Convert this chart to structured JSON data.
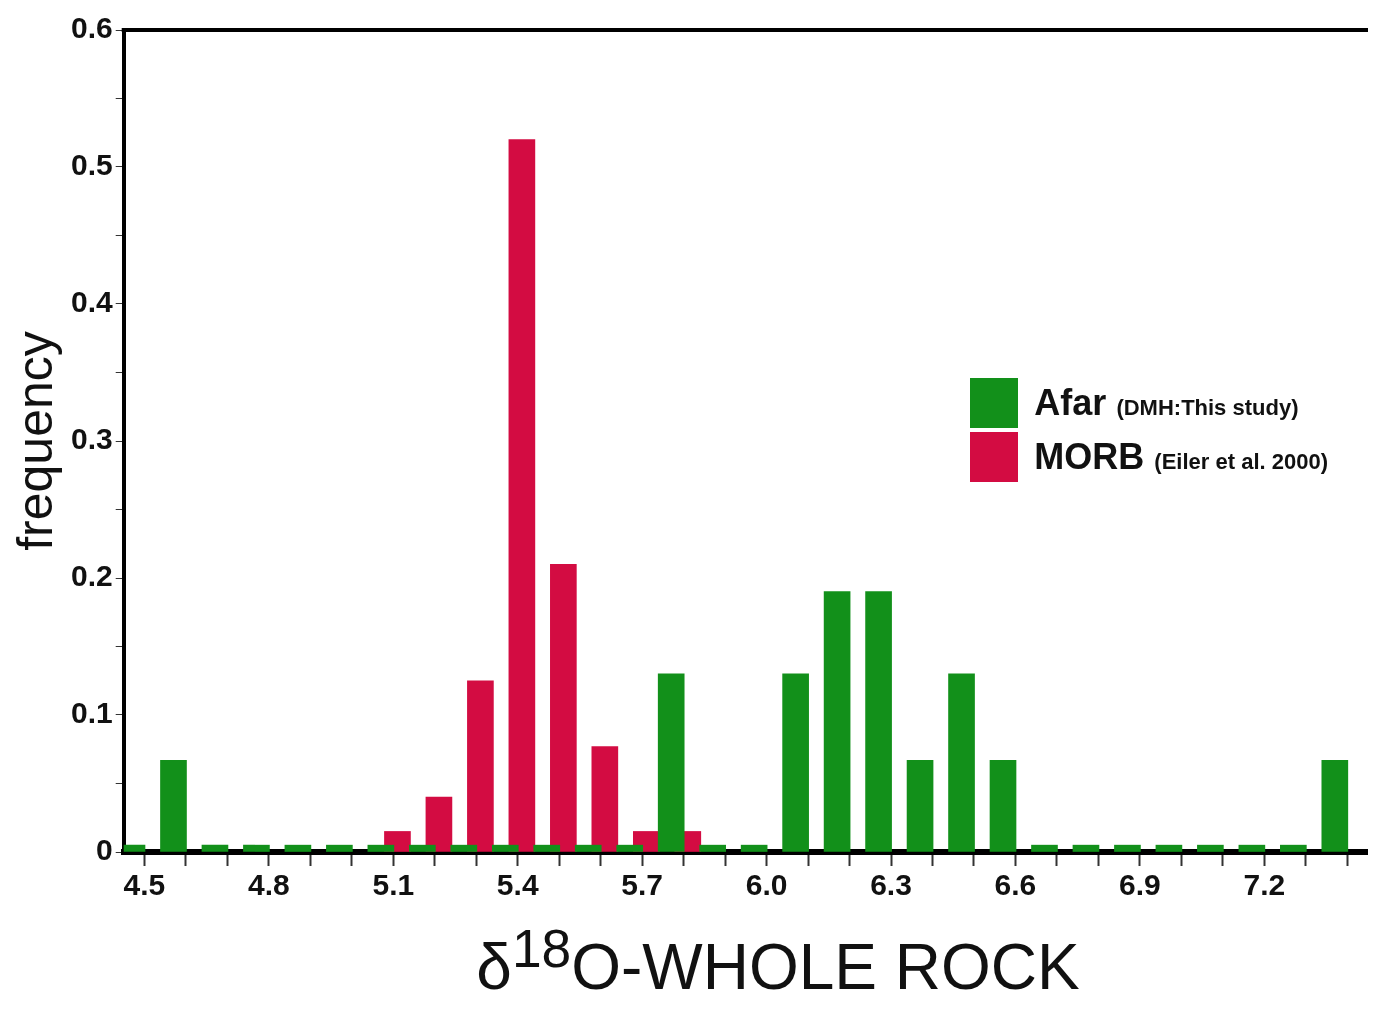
{
  "chart_data": {
    "type": "bar",
    "xlabel": "δ$^{18}$O-WHOLE ROCK",
    "ylabel": "frequency",
    "legend": "right",
    "xlim": [
      4.45,
      7.45
    ],
    "ylim": [
      0,
      0.6
    ],
    "xticks": [
      4.5,
      {
        "value": 4.6,
        "label": null
      },
      {
        "value": 4.7,
        "label": null
      },
      4.8,
      {
        "value": 4.9,
        "label": null
      },
      {
        "value": 5.0,
        "label": null
      },
      5.1,
      {
        "value": 5.2,
        "label": null
      },
      {
        "value": 5.3,
        "label": null
      },
      5.4,
      {
        "value": 5.5,
        "label": null
      },
      {
        "value": 5.6,
        "label": null
      },
      5.7,
      {
        "value": 5.8,
        "label": null
      },
      {
        "value": 5.9,
        "label": null
      },
      {
        "value": 6.0,
        "label": "6.0"
      },
      {
        "value": 6.1,
        "label": null
      },
      {
        "value": 6.2,
        "label": null
      },
      6.3,
      {
        "value": 6.4,
        "label": null
      },
      {
        "value": 6.5,
        "label": null
      },
      6.6,
      {
        "value": 6.7,
        "label": null
      },
      {
        "value": 6.8,
        "label": null
      },
      6.9,
      {
        "value": 7.0,
        "label": null
      },
      {
        "value": 7.1,
        "label": null
      },
      7.2,
      {
        "value": 7.3,
        "label": null
      },
      {
        "value": 7.4,
        "label": null
      }
    ],
    "yticks": [
      0,
      {
        "value": 0.05,
        "label": null
      },
      0.1,
      {
        "value": 0.15,
        "label": null
      },
      0.2,
      {
        "value": 0.25,
        "label": null
      },
      0.3,
      {
        "value": 0.35,
        "label": null
      },
      0.4,
      {
        "value": 0.45,
        "label": null
      },
      0.5,
      {
        "value": 0.55,
        "label": null
      },
      0.6
    ],
    "series": [
      {
        "name": "Afar (DMH:This study)",
        "color": "#12901a",
        "x": [
          4.47,
          4.57,
          4.67,
          4.77,
          4.87,
          4.97,
          5.07,
          5.17,
          5.27,
          5.37,
          5.47,
          5.57,
          5.67,
          5.77,
          5.87,
          5.97,
          6.07,
          6.17,
          6.27,
          6.37,
          6.47,
          6.57,
          6.67,
          6.77,
          6.87,
          6.97,
          7.07,
          7.17,
          7.27,
          7.37
        ],
        "values": [
          0.005,
          0.067,
          0.005,
          0.005,
          0.005,
          0.005,
          0.005,
          0.005,
          0.005,
          0.005,
          0.005,
          0.005,
          0.005,
          0.13,
          0.005,
          0.005,
          0.13,
          0.19,
          0.19,
          0.067,
          0.13,
          0.067,
          0.005,
          0.005,
          0.005,
          0.005,
          0.005,
          0.005,
          0.005,
          0.067
        ]
      },
      {
        "name": "MORB (Eiler et al. 2000)",
        "color": "#d30c42",
        "x": [
          5.11,
          5.21,
          5.31,
          5.41,
          5.51,
          5.61,
          5.71,
          5.81
        ],
        "values": [
          0.015,
          0.04,
          0.125,
          0.52,
          0.21,
          0.077,
          0.015,
          0.015
        ]
      }
    ]
  }
}
